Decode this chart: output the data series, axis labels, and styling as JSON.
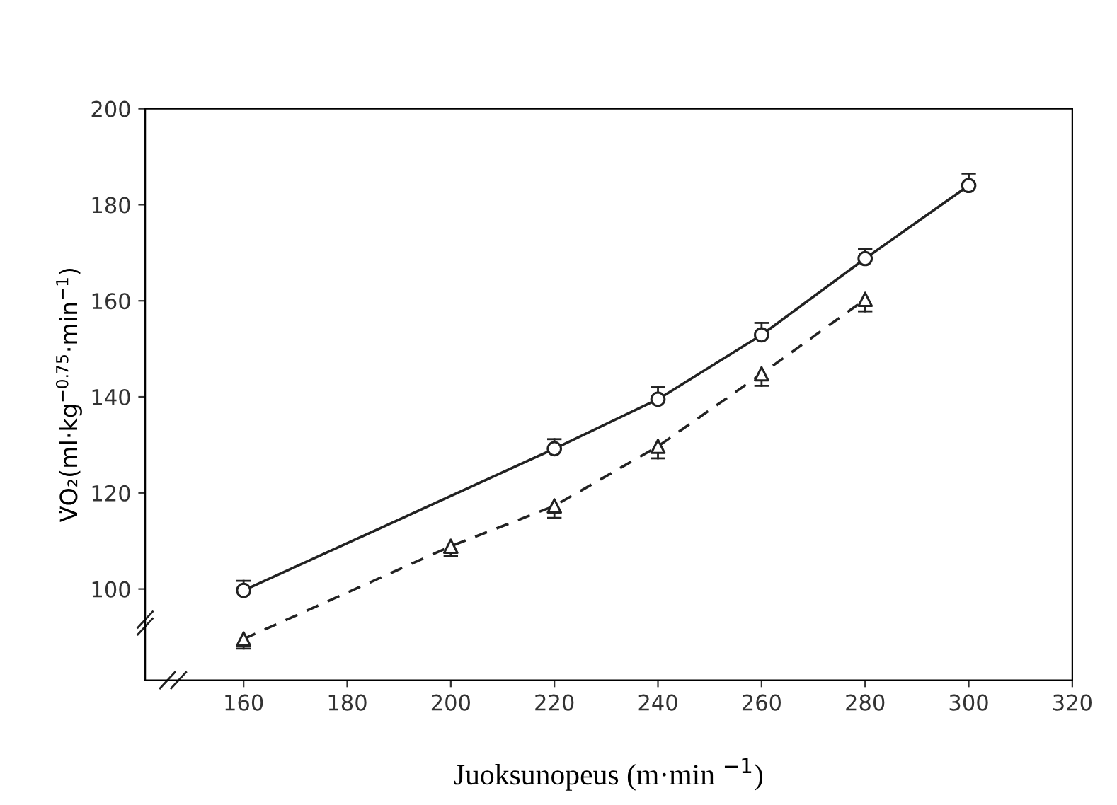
{
  "chart_data": {
    "type": "line",
    "xlabel": "Juoksunopeus (m·min $^{−1}$)",
    "ylabel": "V̇O₂(ml·kg$^{−0.75}$·min$^{−1}$)",
    "xlim": [
      141,
      320
    ],
    "xticks": [
      160,
      180,
      200,
      220,
      240,
      260,
      280,
      300,
      320
    ],
    "ylim": [
      81,
      200
    ],
    "yticks": [
      100,
      120,
      140,
      160,
      180,
      200
    ],
    "grid": false,
    "legend": false,
    "series": [
      {
        "color": "#222222",
        "marker": "circle",
        "line_style": "solid",
        "x": [
          160,
          220,
          240,
          260,
          280,
          300
        ],
        "values": [
          99.7,
          129.2,
          139.5,
          152.9,
          168.8,
          184
        ],
        "errors": [
          [
            99.7,
            101.7
          ],
          [
            129.2,
            131.2
          ],
          [
            139.5,
            142
          ],
          [
            152.9,
            155.4
          ],
          [
            168.8,
            170.8
          ],
          [
            184,
            186.5
          ]
        ]
      },
      {
        "color": "#222222",
        "marker": "triangle",
        "line_style": "dashed",
        "x": [
          160,
          200,
          220,
          240,
          260,
          280
        ],
        "values": [
          89.6,
          108.9,
          117.3,
          129.7,
          144.8,
          160.3
        ],
        "errors": [
          [
            87.6,
            89.6
          ],
          [
            106.9,
            108.9
          ],
          [
            114.8,
            117.3
          ],
          [
            127.2,
            129.7
          ],
          [
            142.3,
            144.8
          ],
          [
            157.8,
            160.3
          ]
        ]
      }
    ]
  }
}
